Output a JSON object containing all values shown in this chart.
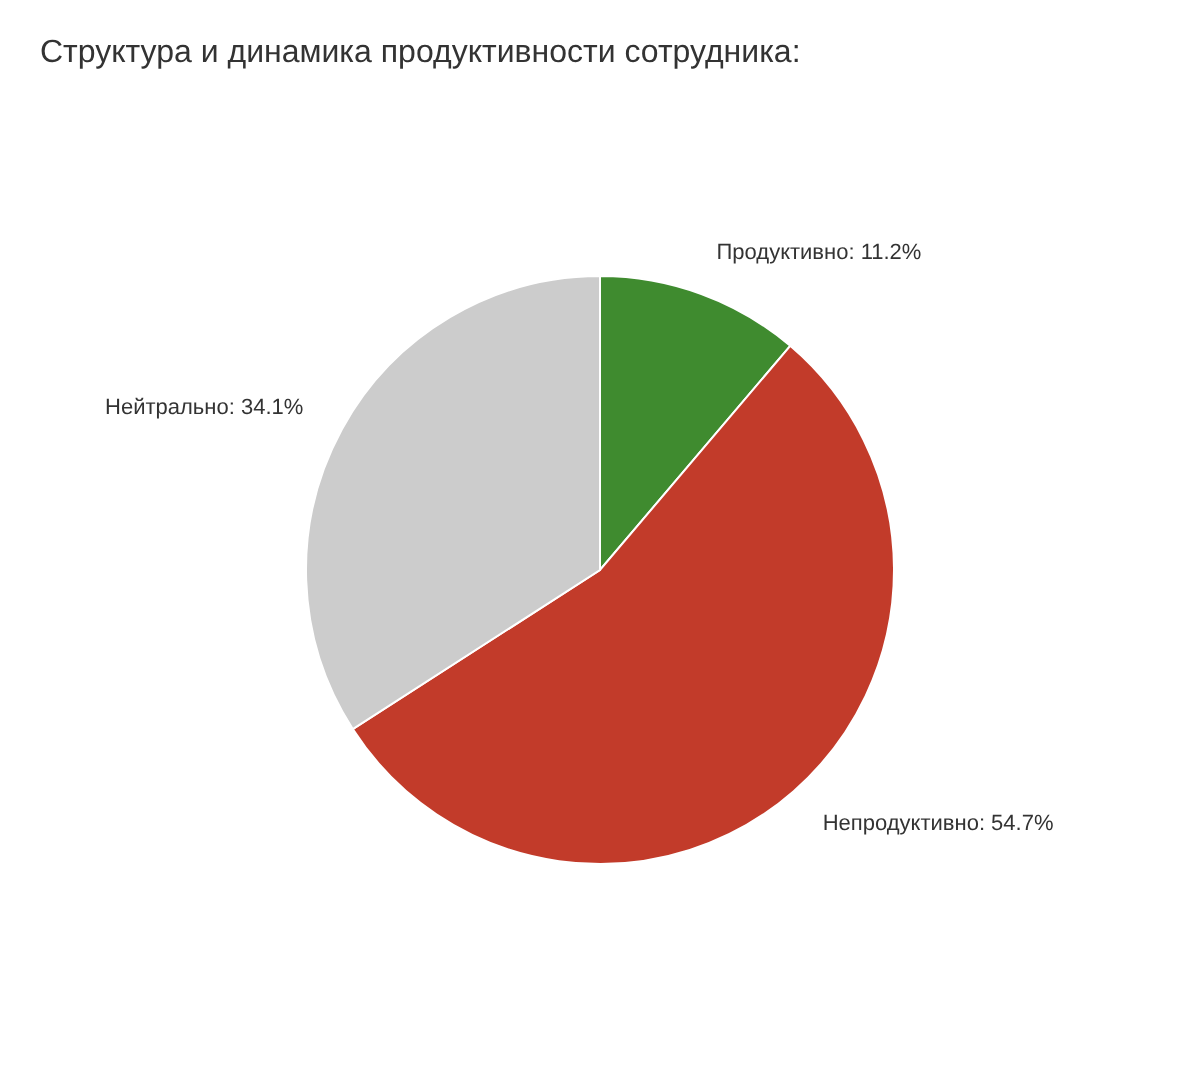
{
  "chart_data": {
    "type": "pie",
    "title": "Структура и динамика продуктивности сотрудника:",
    "categories": [
      "Продуктивно",
      "Непродуктивно",
      "Нейтрально"
    ],
    "values": [
      11.2,
      54.7,
      34.1
    ],
    "colors": [
      "#3f8b2f",
      "#c23b2a",
      "#cccccc"
    ],
    "value_labels": [
      "11.2%",
      "54.7%",
      "34.1%"
    ],
    "legend": false
  }
}
